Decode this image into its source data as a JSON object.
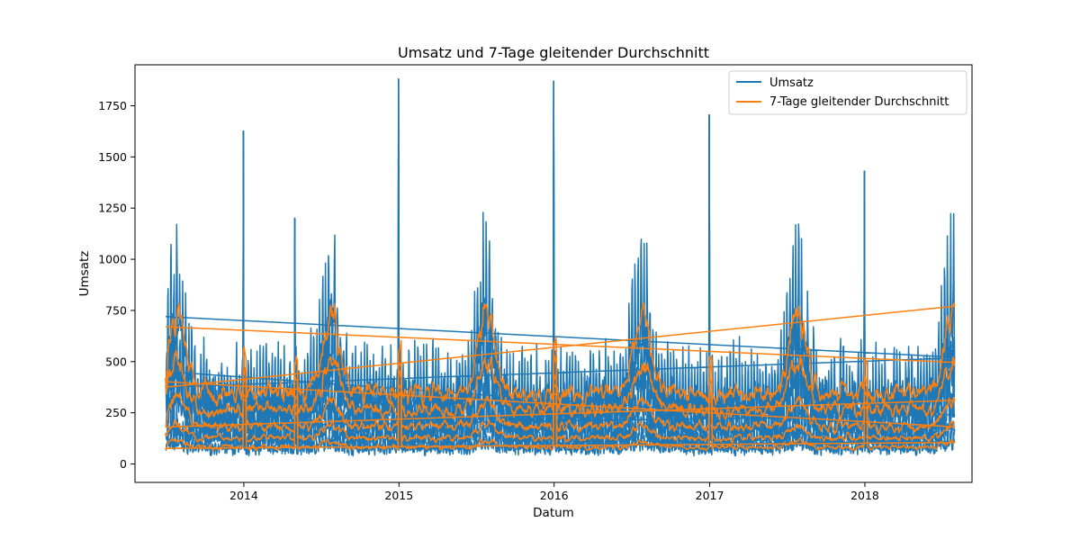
{
  "chart_data": {
    "type": "line",
    "title": "Umsatz und 7-Tage gleitender Durchschnitt",
    "xlabel": "Datum",
    "ylabel": "Umsatz",
    "xlim": [
      "2013-04-20",
      "2018-09-10"
    ],
    "ylim": [
      -90,
      1950
    ],
    "x_ticks": [
      "2014",
      "2015",
      "2016",
      "2017",
      "2018"
    ],
    "y_ticks": [
      0,
      250,
      500,
      750,
      1000,
      1250,
      1500,
      1750
    ],
    "grid": false,
    "legend_position": "top-right",
    "x_start": "2013-07-01",
    "x_end": "2018-07-31",
    "series": [
      {
        "name": "Umsatz",
        "color": "#1f77b4"
      },
      {
        "name": "7-Tage gleitender Durchschnitt",
        "color": "#ff7f0e"
      }
    ],
    "peaks": [
      {
        "x": "2013-12-31",
        "y": 1625
      },
      {
        "x": "2014-05-01",
        "y": 1200
      },
      {
        "x": "2014-12-31",
        "y": 1880
      },
      {
        "x": "2015-12-31",
        "y": 1870
      },
      {
        "x": "2016-12-31",
        "y": 1705
      },
      {
        "x": "2017-12-31",
        "y": 1430
      }
    ]
  }
}
